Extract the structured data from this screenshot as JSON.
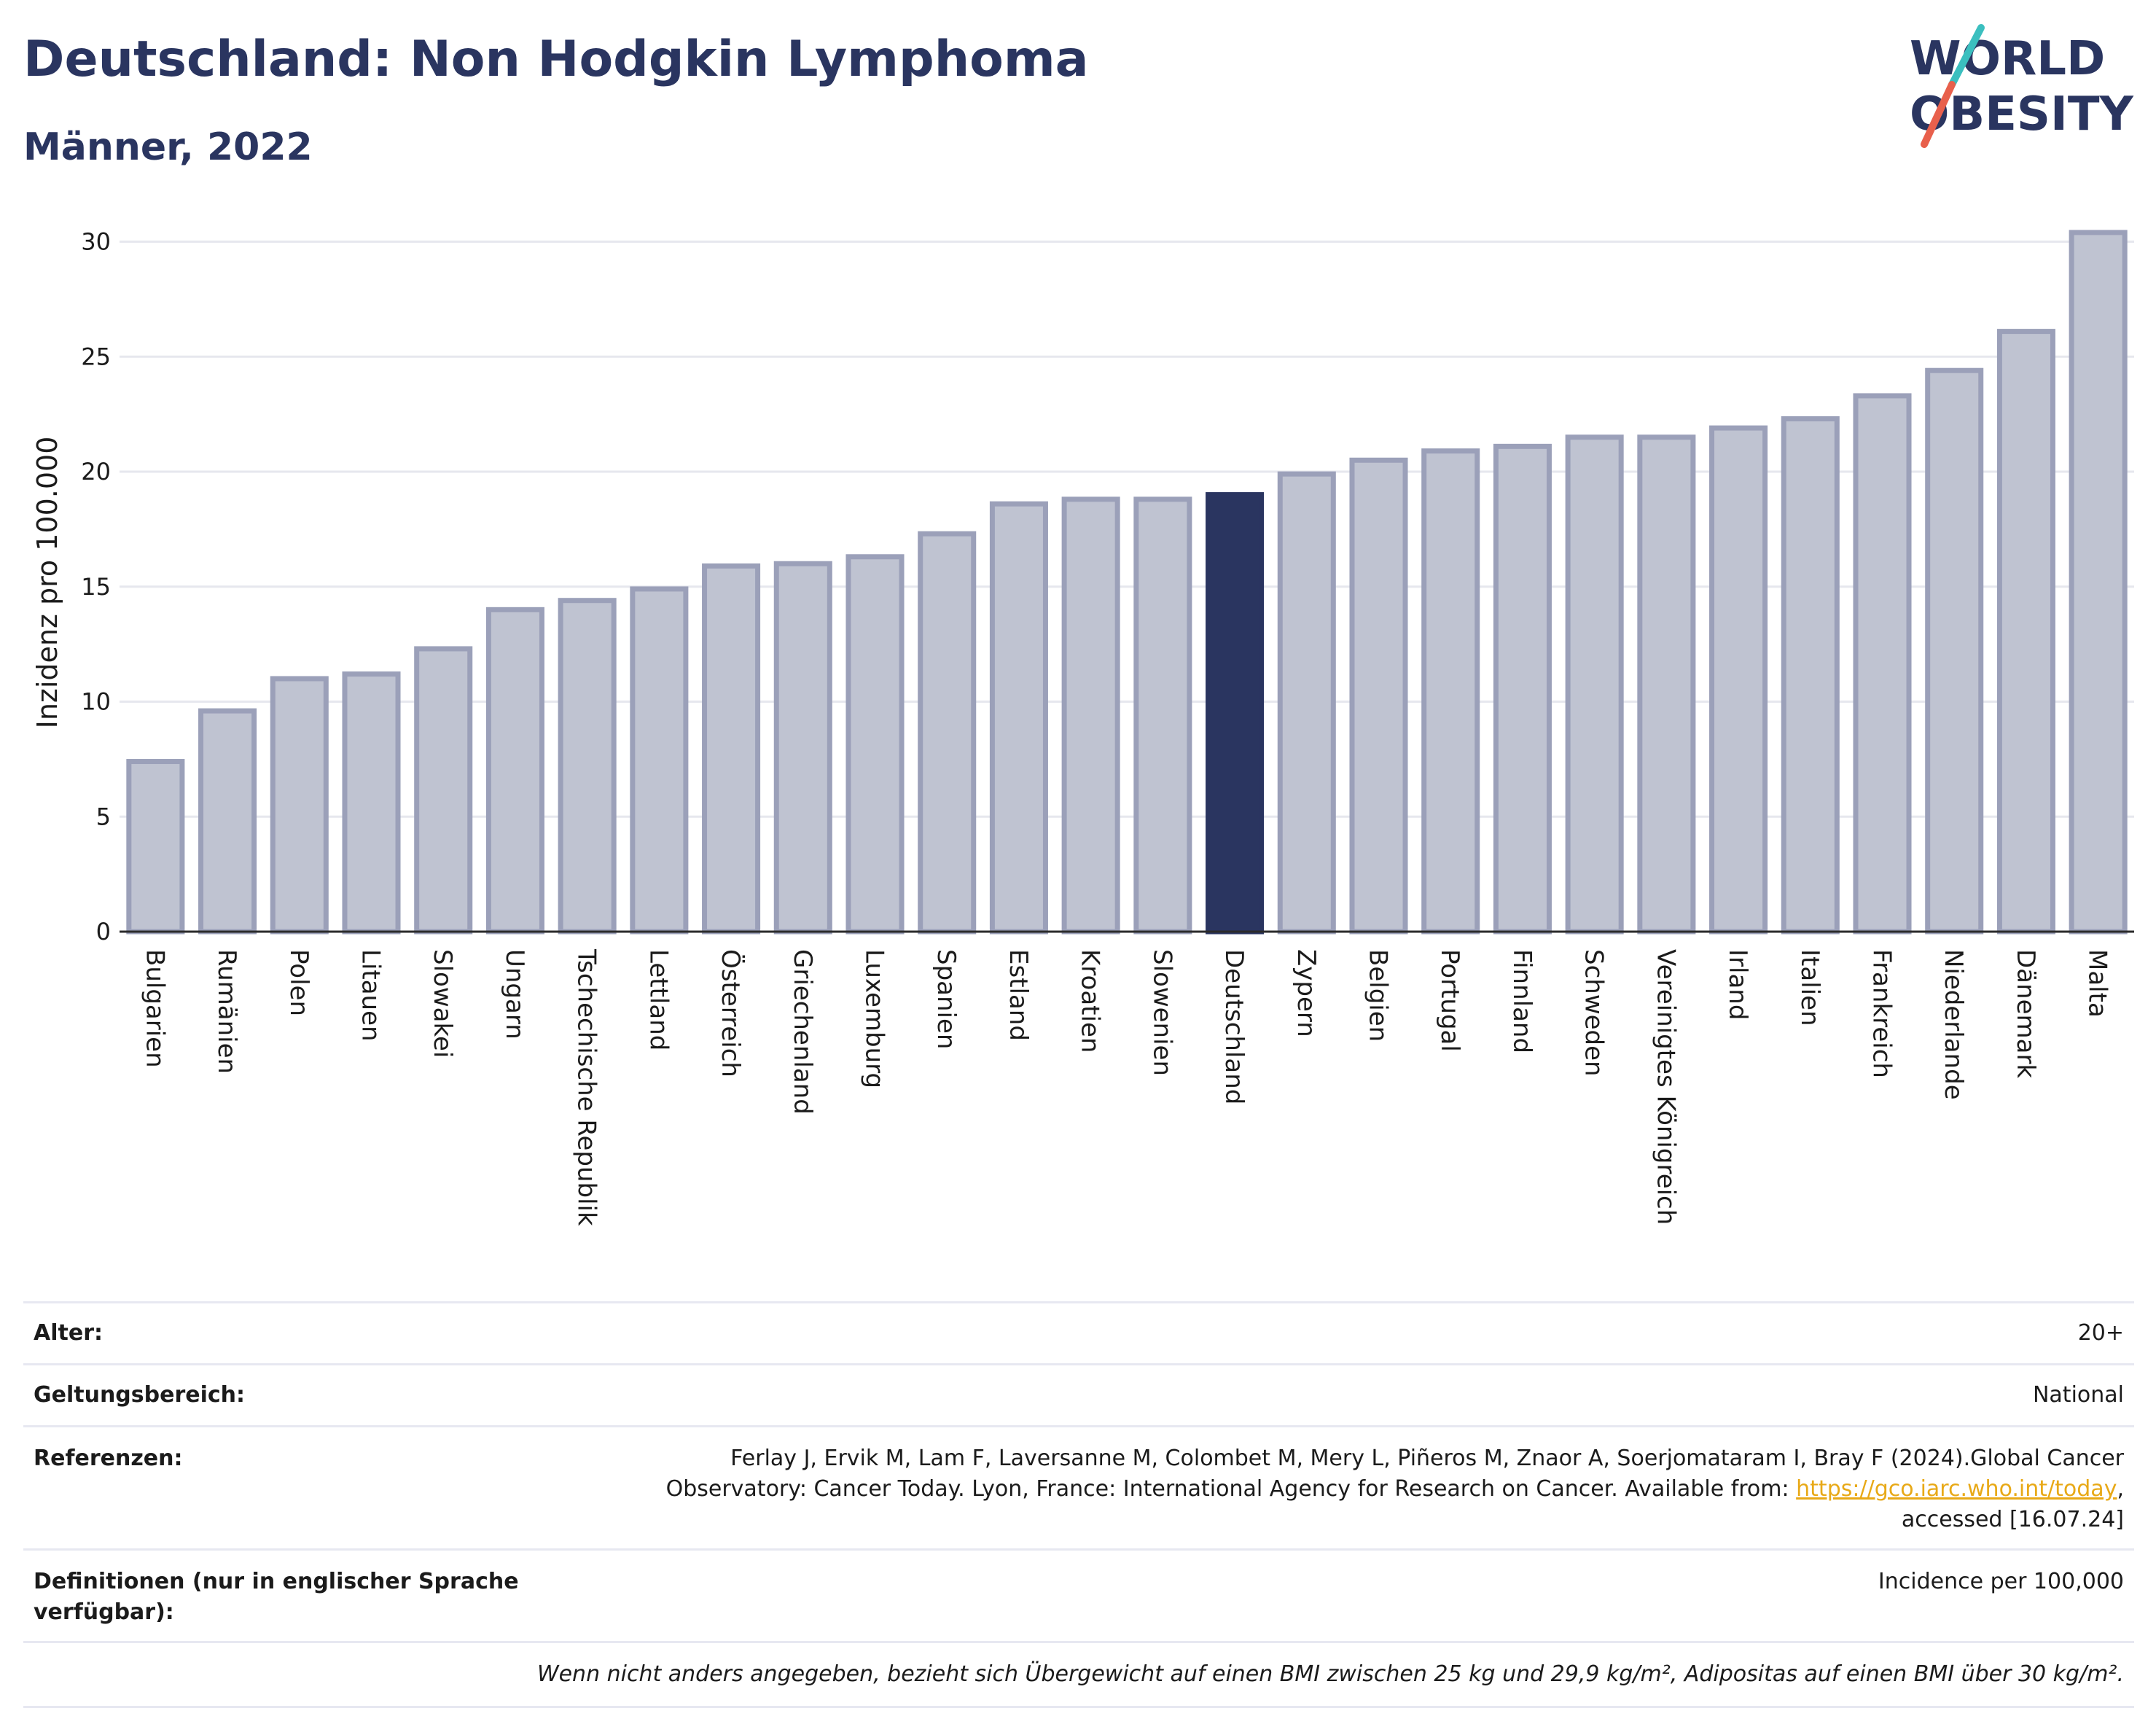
{
  "header": {
    "title": "Deutschland: Non Hodgkin Lymphoma",
    "subtitle": "Männer, 2022"
  },
  "logo": {
    "line1": "WORLD",
    "line2": "OBESITY",
    "colors": {
      "text": "#2a3560",
      "slash_top": "#3bbfbf",
      "slash_bottom": "#e8604c"
    }
  },
  "chart_data": {
    "type": "bar",
    "ylabel": "Inzidenz pro 100.000",
    "xlabel": "",
    "ylim": [
      0,
      31
    ],
    "yticks": [
      0,
      5,
      10,
      15,
      20,
      25,
      30
    ],
    "grid": true,
    "highlight": "Deutschland",
    "colors": {
      "bar": "#bfc3d1",
      "bar_edge": "#9ba0b9",
      "highlight": "#2a3560",
      "grid": "#e6e7ee"
    },
    "categories": [
      "Bulgarien",
      "Rumänien",
      "Polen",
      "Litauen",
      "Slowakei",
      "Ungarn",
      "Tschechische Republik",
      "Lettland",
      "Österreich",
      "Griechenland",
      "Luxemburg",
      "Spanien",
      "Estland",
      "Kroatien",
      "Slowenien",
      "Deutschland",
      "Zypern",
      "Belgien",
      "Portugal",
      "Finnland",
      "Schweden",
      "Vereinigtes Königreich",
      "Irland",
      "Italien",
      "Frankreich",
      "Niederlande",
      "Dänemark",
      "Malta"
    ],
    "values": [
      7.4,
      9.6,
      11.0,
      11.2,
      12.3,
      14.0,
      14.4,
      14.9,
      15.9,
      16.0,
      16.3,
      17.3,
      18.6,
      18.8,
      18.8,
      19.0,
      19.9,
      20.5,
      20.9,
      21.1,
      21.5,
      21.5,
      21.9,
      22.3,
      23.3,
      24.4,
      26.1,
      30.4
    ]
  },
  "info": {
    "rows": [
      {
        "label": "Alter:",
        "value": "20+"
      },
      {
        "label": "Geltungsbereich:",
        "value": "National"
      }
    ],
    "references": {
      "label": "Referenzen:",
      "line1": "Ferlay J, Ervik M, Lam F, Laversanne M, Colombet M, Mery L, Piñeros M, Znaor A, Soerjomataram I, Bray F (2024).Global Cancer",
      "line2_before": "Observatory: Cancer Today. Lyon, France: International Agency for Research on Cancer. Available from: ",
      "link": "https://gco.iarc.who.int/today",
      "line2_after": ",",
      "line3": "accessed [16.07.24]"
    },
    "definitions": {
      "label_line1": "Definitionen (nur in englischer Sprache",
      "label_line2": "verfügbar):",
      "value": "Incidence per 100,000"
    },
    "note": "Wenn nicht anders angegeben, bezieht sich Übergewicht auf einen BMI zwischen 25 kg und 29,9 kg/m², Adipositas auf einen BMI über 30 kg/m²."
  }
}
